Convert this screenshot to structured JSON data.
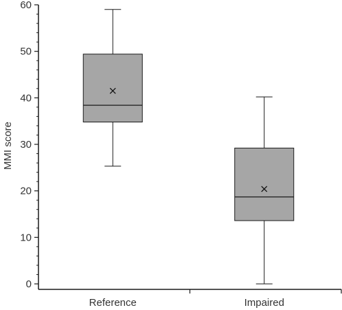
{
  "chart_data": {
    "type": "box",
    "title": "",
    "xlabel": "",
    "ylabel": "MMI score",
    "ylim": [
      0,
      60
    ],
    "y_major_ticks": [
      0,
      10,
      20,
      30,
      40,
      50,
      60
    ],
    "y_minor_step": 2,
    "grid": false,
    "legend": "none",
    "box_fill": "#a6a6a6",
    "stroke_color": "#1a1a1a",
    "categories": [
      "Reference",
      "Impaired"
    ],
    "boxes": [
      {
        "category": "Reference",
        "min": 25.3,
        "q1": 34.8,
        "median": 38.4,
        "q3": 49.4,
        "max": 59.0,
        "mean": 41.5
      },
      {
        "category": "Impaired",
        "min": 0.0,
        "q1": 13.6,
        "median": 18.7,
        "q3": 29.2,
        "max": 40.2,
        "mean": 20.4
      }
    ]
  }
}
